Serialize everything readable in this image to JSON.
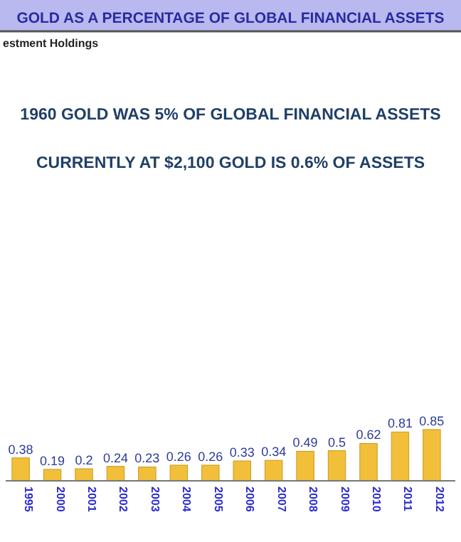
{
  "chart_data": {
    "type": "bar",
    "title": "GOLD AS A PERCENTAGE OF GLOBAL FINANCIAL ASSETS",
    "subtitle": "estment Holdings",
    "annotations": [
      "1960 GOLD WAS 5% OF GLOBAL FINANCIAL ASSETS",
      "CURRENTLY AT $2,100 GOLD IS 0.6% OF ASSETS"
    ],
    "categories": [
      "1995",
      "2000",
      "2001",
      "2002",
      "2003",
      "2004",
      "2005",
      "2006",
      "2007",
      "2008",
      "2009",
      "2010",
      "2011",
      "2012"
    ],
    "values": [
      0.38,
      0.19,
      0.2,
      0.24,
      0.23,
      0.26,
      0.26,
      0.33,
      0.34,
      0.49,
      0.5,
      0.62,
      0.81,
      0.85
    ],
    "color": "#f2bf3a",
    "data_labels": true,
    "ylim": [
      0,
      7.5
    ]
  }
}
